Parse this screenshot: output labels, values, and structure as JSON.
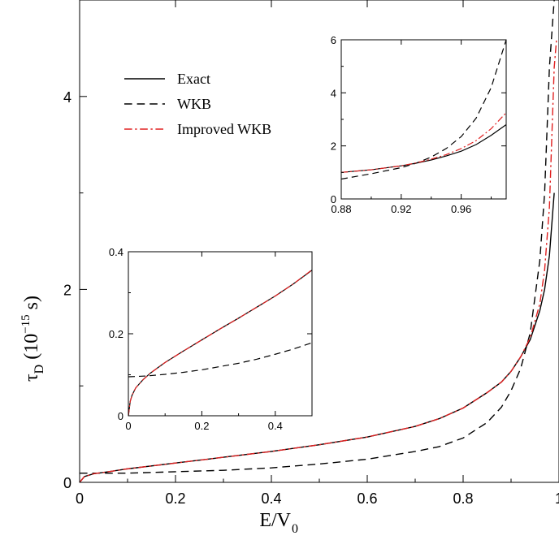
{
  "chart_data": [
    {
      "type": "line",
      "xlabel": "E/V",
      "xlabel_sub": "0",
      "ylabel_main": "τ",
      "ylabel_sub": "D",
      "ylabel_unit_pre": "(10",
      "ylabel_unit_exp": "−15",
      "ylabel_unit_post": " s)",
      "xlim": [
        0,
        1.0
      ],
      "ylim": [
        0,
        5.0
      ],
      "x_ticks": [
        "0",
        "0.2",
        "0.4",
        "0.6",
        "0.8",
        "1"
      ],
      "x_tick_values": [
        0,
        0.2,
        0.4,
        0.6,
        0.8,
        1.0
      ],
      "y_ticks": [
        "0",
        "2",
        "4"
      ],
      "y_tick_values": [
        0,
        2,
        4
      ],
      "grid": false,
      "legend_position": "top-left",
      "series": [
        {
          "name": "Exact",
          "color": "#000000",
          "dash": "solid",
          "points": [
            [
              0.0,
              0.0
            ],
            [
              0.01,
              0.06
            ],
            [
              0.03,
              0.09
            ],
            [
              0.06,
              0.11
            ],
            [
              0.1,
              0.14
            ],
            [
              0.2,
              0.2
            ],
            [
              0.3,
              0.26
            ],
            [
              0.4,
              0.32
            ],
            [
              0.5,
              0.39
            ],
            [
              0.6,
              0.47
            ],
            [
              0.7,
              0.58
            ],
            [
              0.75,
              0.66
            ],
            [
              0.8,
              0.77
            ],
            [
              0.85,
              0.93
            ],
            [
              0.88,
              1.04
            ],
            [
              0.9,
              1.15
            ],
            [
              0.92,
              1.3
            ],
            [
              0.94,
              1.48
            ],
            [
              0.96,
              1.78
            ],
            [
              0.97,
              2.0
            ],
            [
              0.98,
              2.35
            ],
            [
              0.99,
              3.0
            ]
          ]
        },
        {
          "name": "WKB",
          "color": "#000000",
          "dash": "dashed",
          "points": [
            [
              0.0,
              0.095
            ],
            [
              0.1,
              0.095
            ],
            [
              0.2,
              0.11
            ],
            [
              0.3,
              0.125
            ],
            [
              0.4,
              0.15
            ],
            [
              0.5,
              0.19
            ],
            [
              0.6,
              0.24
            ],
            [
              0.7,
              0.32
            ],
            [
              0.75,
              0.37
            ],
            [
              0.8,
              0.46
            ],
            [
              0.85,
              0.62
            ],
            [
              0.88,
              0.78
            ],
            [
              0.9,
              0.95
            ],
            [
              0.92,
              1.18
            ],
            [
              0.94,
              1.55
            ],
            [
              0.96,
              2.3
            ],
            [
              0.97,
              3.0
            ],
            [
              0.98,
              4.3
            ],
            [
              0.99,
              5.0
            ]
          ]
        },
        {
          "name": "Improved WKB",
          "color": "#e02020",
          "dash": "dashdot",
          "points": [
            [
              0.0,
              0.0
            ],
            [
              0.01,
              0.06
            ],
            [
              0.03,
              0.09
            ],
            [
              0.06,
              0.11
            ],
            [
              0.1,
              0.14
            ],
            [
              0.2,
              0.2
            ],
            [
              0.3,
              0.26
            ],
            [
              0.4,
              0.32
            ],
            [
              0.5,
              0.39
            ],
            [
              0.6,
              0.47
            ],
            [
              0.7,
              0.58
            ],
            [
              0.75,
              0.66
            ],
            [
              0.8,
              0.77
            ],
            [
              0.85,
              0.93
            ],
            [
              0.88,
              1.04
            ],
            [
              0.9,
              1.15
            ],
            [
              0.92,
              1.3
            ],
            [
              0.94,
              1.5
            ],
            [
              0.96,
              1.85
            ],
            [
              0.97,
              2.2
            ],
            [
              0.98,
              2.85
            ],
            [
              0.99,
              4.3
            ],
            [
              0.995,
              4.6
            ]
          ]
        }
      ]
    },
    {
      "type": "line",
      "role": "inset-upper-right",
      "xlim": [
        0.88,
        0.99
      ],
      "ylim": [
        0,
        6
      ],
      "x_ticks": [
        "0.88",
        "0.92",
        "0.96"
      ],
      "x_tick_values": [
        0.88,
        0.92,
        0.96
      ],
      "y_ticks": [
        "0",
        "2",
        "4",
        "6"
      ],
      "y_tick_values": [
        0,
        2,
        4,
        6
      ],
      "series": [
        {
          "name": "Exact",
          "color": "#000000",
          "dash": "solid",
          "points": [
            [
              0.88,
              1.0
            ],
            [
              0.9,
              1.1
            ],
            [
              0.92,
              1.25
            ],
            [
              0.93,
              1.35
            ],
            [
              0.94,
              1.47
            ],
            [
              0.95,
              1.62
            ],
            [
              0.96,
              1.8
            ],
            [
              0.97,
              2.05
            ],
            [
              0.98,
              2.4
            ],
            [
              0.99,
              2.8
            ]
          ]
        },
        {
          "name": "WKB",
          "color": "#000000",
          "dash": "dashed",
          "points": [
            [
              0.88,
              0.75
            ],
            [
              0.9,
              0.95
            ],
            [
              0.92,
              1.18
            ],
            [
              0.93,
              1.35
            ],
            [
              0.94,
              1.58
            ],
            [
              0.95,
              1.9
            ],
            [
              0.96,
              2.35
            ],
            [
              0.97,
              3.05
            ],
            [
              0.98,
              4.2
            ],
            [
              0.99,
              6.0
            ]
          ]
        },
        {
          "name": "Improved WKB",
          "color": "#e02020",
          "dash": "dashdot",
          "points": [
            [
              0.88,
              1.0
            ],
            [
              0.9,
              1.1
            ],
            [
              0.92,
              1.25
            ],
            [
              0.93,
              1.36
            ],
            [
              0.94,
              1.5
            ],
            [
              0.95,
              1.67
            ],
            [
              0.96,
              1.9
            ],
            [
              0.97,
              2.2
            ],
            [
              0.98,
              2.65
            ],
            [
              0.99,
              3.25
            ]
          ]
        }
      ]
    },
    {
      "type": "line",
      "role": "inset-lower-left",
      "xlim": [
        0,
        0.5
      ],
      "ylim": [
        0,
        0.4
      ],
      "x_ticks": [
        "0",
        "0.2",
        "0.4"
      ],
      "x_tick_values": [
        0,
        0.2,
        0.4
      ],
      "y_ticks": [
        "0",
        "0.2",
        "0.4"
      ],
      "y_tick_values": [
        0,
        0.2,
        0.4
      ],
      "series": [
        {
          "name": "Exact",
          "color": "#000000",
          "dash": "solid",
          "points": [
            [
              0.0,
              0.0
            ],
            [
              0.005,
              0.035
            ],
            [
              0.01,
              0.05
            ],
            [
              0.02,
              0.068
            ],
            [
              0.04,
              0.088
            ],
            [
              0.06,
              0.104
            ],
            [
              0.08,
              0.117
            ],
            [
              0.1,
              0.13
            ],
            [
              0.15,
              0.158
            ],
            [
              0.2,
              0.185
            ],
            [
              0.25,
              0.212
            ],
            [
              0.3,
              0.238
            ],
            [
              0.35,
              0.265
            ],
            [
              0.4,
              0.292
            ],
            [
              0.45,
              0.322
            ],
            [
              0.5,
              0.355
            ]
          ]
        },
        {
          "name": "WKB",
          "color": "#000000",
          "dash": "dashed",
          "points": [
            [
              0.0,
              0.095
            ],
            [
              0.05,
              0.097
            ],
            [
              0.1,
              0.101
            ],
            [
              0.15,
              0.106
            ],
            [
              0.2,
              0.112
            ],
            [
              0.25,
              0.12
            ],
            [
              0.3,
              0.128
            ],
            [
              0.35,
              0.138
            ],
            [
              0.4,
              0.15
            ],
            [
              0.45,
              0.163
            ],
            [
              0.5,
              0.178
            ]
          ]
        },
        {
          "name": "Improved WKB",
          "color": "#e02020",
          "dash": "dashdot",
          "points": [
            [
              0.0,
              0.0
            ],
            [
              0.005,
              0.035
            ],
            [
              0.01,
              0.05
            ],
            [
              0.02,
              0.068
            ],
            [
              0.04,
              0.088
            ],
            [
              0.06,
              0.104
            ],
            [
              0.08,
              0.117
            ],
            [
              0.1,
              0.13
            ],
            [
              0.15,
              0.158
            ],
            [
              0.2,
              0.185
            ],
            [
              0.25,
              0.212
            ],
            [
              0.3,
              0.238
            ],
            [
              0.35,
              0.265
            ],
            [
              0.4,
              0.292
            ],
            [
              0.45,
              0.322
            ],
            [
              0.5,
              0.356
            ]
          ]
        }
      ]
    }
  ]
}
